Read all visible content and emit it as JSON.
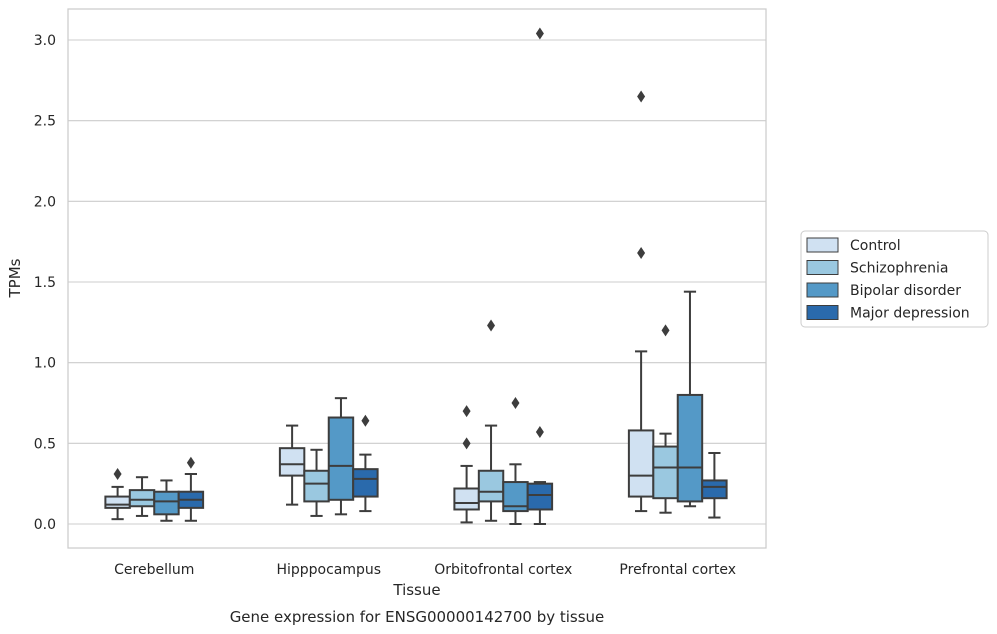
{
  "chart_data": {
    "type": "box",
    "xlabel": "Tissue",
    "ylabel": "TPMs",
    "caption": "Gene expression for ENSG00000142700 by tissue",
    "ylim": [
      -0.15,
      3.2
    ],
    "yticks": [
      0.0,
      0.5,
      1.0,
      1.5,
      2.0,
      2.5,
      3.0
    ],
    "ytick_labels": [
      "0.0",
      "0.5",
      "1.0",
      "1.5",
      "2.0",
      "2.5",
      "3.0"
    ],
    "grid": "horizontal",
    "legend_position": "right",
    "categories": [
      "Cerebellum",
      "Hipppocampus",
      "Orbitofrontal cortex",
      "Prefrontal cortex"
    ],
    "series": [
      {
        "name": "Control",
        "color": "#d0e1f2",
        "boxes": [
          {
            "whislo": 0.03,
            "q1": 0.1,
            "med": 0.12,
            "q3": 0.17,
            "whishi": 0.23,
            "fliers": [
              0.31
            ]
          },
          {
            "whislo": 0.12,
            "q1": 0.3,
            "med": 0.37,
            "q3": 0.47,
            "whishi": 0.61,
            "fliers": []
          },
          {
            "whislo": 0.01,
            "q1": 0.09,
            "med": 0.13,
            "q3": 0.22,
            "whishi": 0.36,
            "fliers": [
              0.5,
              0.7
            ]
          },
          {
            "whislo": 0.08,
            "q1": 0.17,
            "med": 0.3,
            "q3": 0.58,
            "whishi": 1.07,
            "fliers": [
              1.68,
              2.65
            ]
          }
        ]
      },
      {
        "name": "Schizophrenia",
        "color": "#9ac8e0",
        "boxes": [
          {
            "whislo": 0.05,
            "q1": 0.11,
            "med": 0.15,
            "q3": 0.21,
            "whishi": 0.29,
            "fliers": []
          },
          {
            "whislo": 0.05,
            "q1": 0.14,
            "med": 0.25,
            "q3": 0.33,
            "whishi": 0.46,
            "fliers": []
          },
          {
            "whislo": 0.02,
            "q1": 0.14,
            "med": 0.2,
            "q3": 0.33,
            "whishi": 0.61,
            "fliers": [
              1.23
            ]
          },
          {
            "whislo": 0.07,
            "q1": 0.16,
            "med": 0.35,
            "q3": 0.48,
            "whishi": 0.56,
            "fliers": [
              1.2
            ]
          }
        ]
      },
      {
        "name": "Bipolar disorder",
        "color": "#5499c7",
        "boxes": [
          {
            "whislo": 0.02,
            "q1": 0.06,
            "med": 0.14,
            "q3": 0.2,
            "whishi": 0.27,
            "fliers": []
          },
          {
            "whislo": 0.06,
            "q1": 0.15,
            "med": 0.36,
            "q3": 0.66,
            "whishi": 0.78,
            "fliers": []
          },
          {
            "whislo": 0.0,
            "q1": 0.08,
            "med": 0.11,
            "q3": 0.26,
            "whishi": 0.37,
            "fliers": [
              0.75
            ]
          },
          {
            "whislo": 0.11,
            "q1": 0.14,
            "med": 0.35,
            "q3": 0.8,
            "whishi": 1.44,
            "fliers": []
          }
        ]
      },
      {
        "name": "Major depression",
        "color": "#2a6aac",
        "boxes": [
          {
            "whislo": 0.02,
            "q1": 0.1,
            "med": 0.15,
            "q3": 0.2,
            "whishi": 0.31,
            "fliers": [
              0.38
            ]
          },
          {
            "whislo": 0.08,
            "q1": 0.17,
            "med": 0.28,
            "q3": 0.34,
            "whishi": 0.43,
            "fliers": [
              0.64
            ]
          },
          {
            "whislo": 0.0,
            "q1": 0.09,
            "med": 0.18,
            "q3": 0.25,
            "whishi": 0.26,
            "fliers": [
              0.57,
              3.04
            ]
          },
          {
            "whislo": 0.04,
            "q1": 0.16,
            "med": 0.23,
            "q3": 0.27,
            "whishi": 0.44,
            "fliers": []
          }
        ]
      }
    ]
  }
}
